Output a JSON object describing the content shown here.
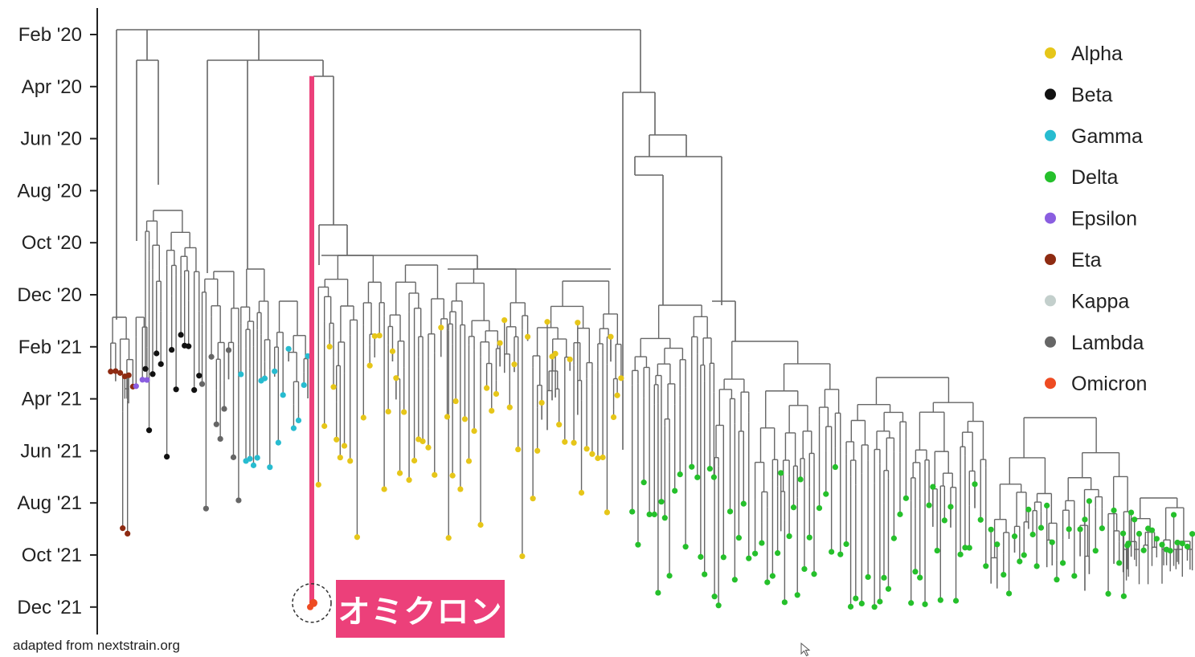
{
  "chart_data": {
    "type": "tree",
    "y_axis": {
      "ticks": [
        "Feb '20",
        "Apr '20",
        "Jun '20",
        "Aug '20",
        "Oct '20",
        "Dec '20",
        "Feb '21",
        "Apr '21",
        "Jun '21",
        "Aug '21",
        "Oct '21",
        "Dec '21"
      ],
      "direction": "time increases downward"
    },
    "legend": {
      "placement": "top-right",
      "entries": [
        {
          "name": "Alpha",
          "color": "#e6c619"
        },
        {
          "name": "Beta",
          "color": "#111111"
        },
        {
          "name": "Gamma",
          "color": "#27bcd0"
        },
        {
          "name": "Delta",
          "color": "#25c02b"
        },
        {
          "name": "Epsilon",
          "color": "#8a5ee0"
        },
        {
          "name": "Eta",
          "color": "#8e2b12"
        },
        {
          "name": "Kappa",
          "color": "#c3cfcc"
        },
        {
          "name": "Lambda",
          "color": "#666666"
        },
        {
          "name": "Omicron",
          "color": "#ee4b22"
        }
      ]
    },
    "highlight": {
      "label": "オミクロン",
      "variant": "Omicron",
      "color": "#ec407a",
      "from_tick": "Apr '20",
      "to_tick": "Dec '21"
    },
    "branch_color": "#666666"
  },
  "source_note": "adapted from nextstrain.org"
}
